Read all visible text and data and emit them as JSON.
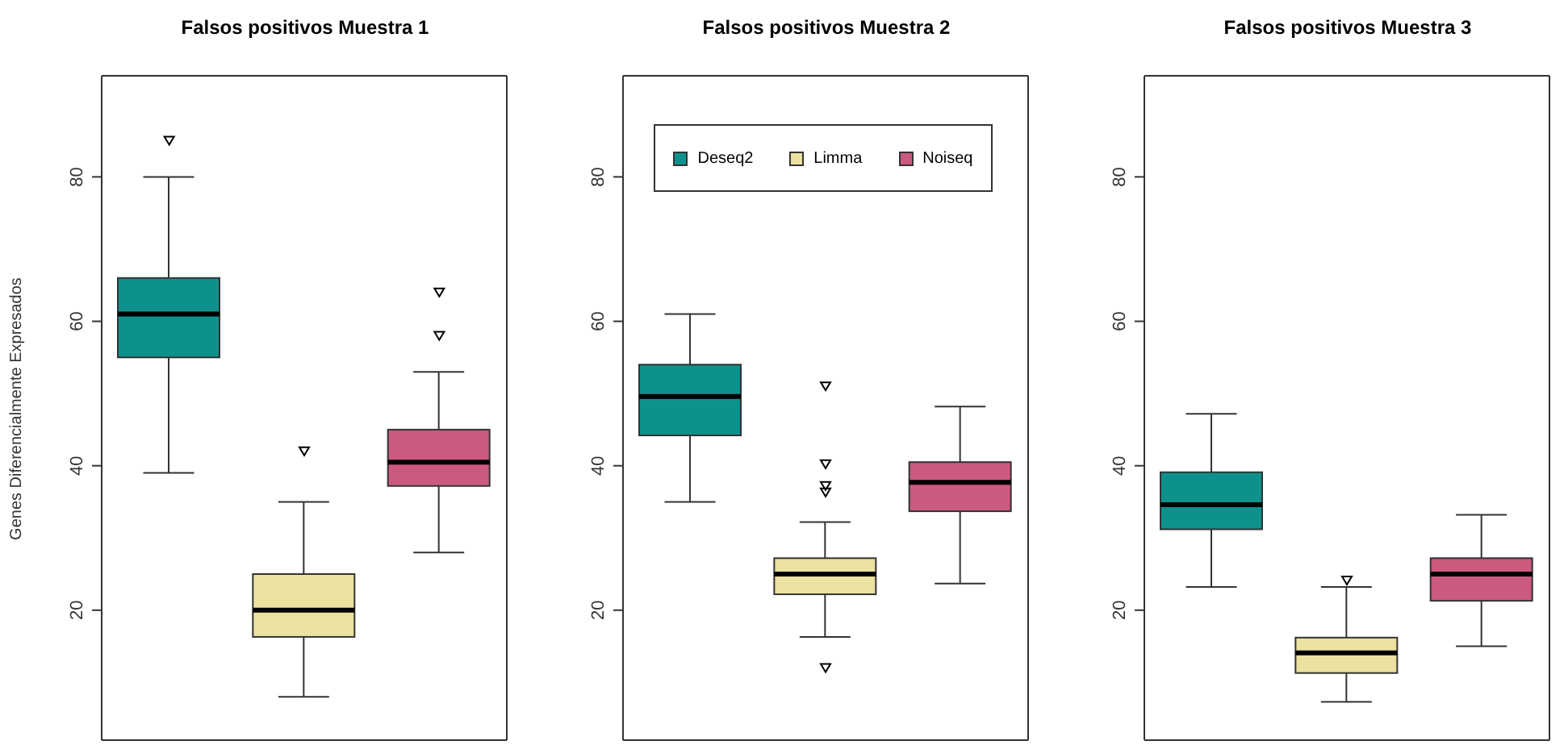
{
  "chart_data": [
    {
      "type": "box",
      "title": "Falsos positivos Muestra 1",
      "ylabel": "Genes Diferencialmente Expresados",
      "categories": [
        null,
        null,
        null
      ],
      "ylim": [
        2,
        94
      ],
      "yticks": [
        20,
        40,
        60,
        80
      ],
      "tick_labels": "y",
      "marker": "triangle",
      "legend": false,
      "series": [
        {
          "color": "#0e918c",
          "boxes": [
            {
              "low": 39,
              "q1": 55,
              "median": 61,
              "q3": 66,
              "high": 80,
              "outliers": [
                85
              ]
            },
            null,
            null
          ]
        },
        {
          "color": "#ebe1a0",
          "boxes": [
            null,
            {
              "low": 8,
              "q1": 16.3,
              "median": 20,
              "q3": 25,
              "high": 35,
              "outliers": [
                42
              ]
            },
            null
          ]
        },
        {
          "color": "#cc5a7e",
          "boxes": [
            null,
            null,
            {
              "low": 28,
              "q1": 37.2,
              "median": 40.5,
              "q3": 45,
              "high": 53,
              "outliers": [
                58,
                64
              ]
            }
          ]
        }
      ]
    },
    {
      "type": "box",
      "title": "Falsos positivos Muestra 2",
      "categories": [
        null,
        null,
        null
      ],
      "ylim": [
        2,
        94
      ],
      "yticks": [
        20,
        40,
        60,
        80
      ],
      "tick_labels": "y",
      "marker": "triangle",
      "legend": "top",
      "series": [
        {
          "name": "Deseq2",
          "color": "#0e918c",
          "boxes": [
            {
              "low": 35,
              "q1": 44.2,
              "median": 49.6,
              "q3": 54,
              "high": 61
            },
            null,
            null
          ]
        },
        {
          "name": "Limma",
          "color": "#ebe1a0",
          "boxes": [
            null,
            {
              "low": 16.3,
              "q1": 22.2,
              "median": 25,
              "q3": 27.2,
              "high": 32.2,
              "outliers": [
                12,
                36.3,
                37.2,
                40.2,
                51
              ]
            },
            null
          ]
        },
        {
          "name": "Noiseq",
          "color": "#cc5a7e",
          "boxes": [
            null,
            null,
            {
              "low": 23.7,
              "q1": 33.7,
              "median": 37.7,
              "q3": 40.5,
              "high": 48.2
            }
          ]
        }
      ]
    },
    {
      "type": "box",
      "title": "Falsos positivos Muestra 3",
      "categories": [
        null,
        null,
        null
      ],
      "ylim": [
        2,
        94
      ],
      "yticks": [
        20,
        40,
        60,
        80
      ],
      "tick_labels": "y",
      "marker": "triangle",
      "legend": false,
      "series": [
        {
          "color": "#0e918c",
          "boxes": [
            {
              "low": 23.2,
              "q1": 31.2,
              "median": 34.6,
              "q3": 39.1,
              "high": 47.2
            },
            null,
            null
          ]
        },
        {
          "color": "#ebe1a0",
          "boxes": [
            null,
            {
              "low": 7.3,
              "q1": 11.3,
              "median": 14.1,
              "q3": 16.2,
              "high": 23.2,
              "outliers": [
                24.1
              ]
            },
            null
          ]
        },
        {
          "color": "#cc5a7e",
          "boxes": [
            null,
            null,
            {
              "low": 15,
              "q1": 21.3,
              "median": 25,
              "q3": 27.2,
              "high": 33.2
            }
          ]
        }
      ]
    }
  ]
}
